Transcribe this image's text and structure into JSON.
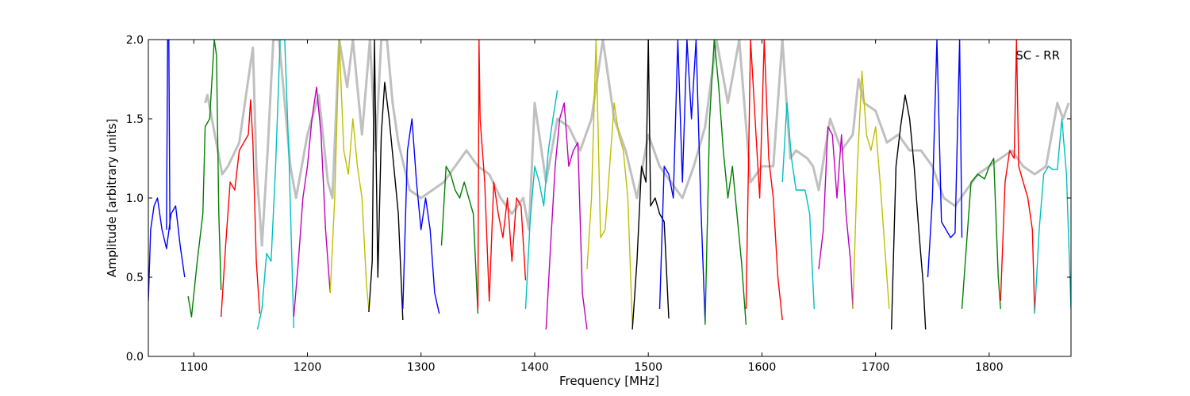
{
  "chart_data": {
    "type": "line",
    "annotation": "SC - RR",
    "xlabel": "Frequency [MHz]",
    "ylabel": "Amplitude [arbitrary units]",
    "xlim": [
      1060,
      1872
    ],
    "ylim": [
      0.0,
      2.0
    ],
    "xticks": [
      1100,
      1200,
      1300,
      1400,
      1500,
      1600,
      1700,
      1800
    ],
    "yticks": [
      0.0,
      0.5,
      1.0,
      1.5,
      2.0
    ],
    "xtick_labels": [
      "1100",
      "1200",
      "1300",
      "1400",
      "1500",
      "1600",
      "1700",
      "1800"
    ],
    "ytick_labels": [
      "0.0",
      "0.5",
      "1.0",
      "1.5",
      "2.0"
    ],
    "grid": false,
    "background_series": {
      "color": "#c0c0c0",
      "x": [
        1110,
        1112,
        1125,
        1130,
        1140,
        1148,
        1152,
        1155,
        1160,
        1165,
        1170,
        1175,
        1180,
        1185,
        1190,
        1200,
        1210,
        1218,
        1222,
        1228,
        1235,
        1240,
        1248,
        1255,
        1260,
        1265,
        1270,
        1275,
        1280,
        1290,
        1300,
        1310,
        1320,
        1330,
        1340,
        1350,
        1360,
        1370,
        1380,
        1390,
        1395,
        1400,
        1410,
        1420,
        1430,
        1440,
        1450,
        1460,
        1470,
        1480,
        1490,
        1495,
        1500,
        1510,
        1520,
        1530,
        1540,
        1550,
        1560,
        1570,
        1580,
        1590,
        1600,
        1610,
        1618,
        1625,
        1630,
        1640,
        1645,
        1650,
        1660,
        1670,
        1680,
        1685,
        1690,
        1700,
        1710,
        1720,
        1730,
        1740,
        1750,
        1760,
        1770,
        1775,
        1780,
        1790,
        1800,
        1810,
        1820,
        1830,
        1840,
        1850,
        1855,
        1860,
        1865,
        1870
      ],
      "y": [
        1.6,
        1.65,
        1.15,
        1.2,
        1.35,
        1.75,
        1.95,
        1.2,
        0.7,
        1.3,
        2.0,
        2.0,
        1.6,
        1.2,
        1.0,
        1.4,
        1.65,
        1.1,
        1.0,
        2.0,
        1.7,
        2.0,
        1.4,
        2.0,
        1.3,
        2.0,
        2.0,
        1.6,
        1.35,
        1.05,
        1.0,
        1.05,
        1.1,
        1.2,
        1.3,
        1.2,
        1.15,
        1.0,
        0.9,
        1.0,
        0.8,
        1.6,
        1.1,
        1.5,
        1.45,
        1.3,
        1.5,
        2.0,
        1.5,
        1.3,
        1.0,
        1.2,
        1.4,
        1.2,
        1.1,
        1.0,
        1.2,
        1.45,
        2.0,
        1.6,
        2.0,
        1.1,
        1.2,
        1.2,
        2.0,
        1.25,
        1.3,
        1.25,
        1.2,
        1.05,
        1.5,
        1.3,
        1.4,
        1.75,
        1.6,
        1.55,
        1.35,
        1.4,
        1.3,
        1.3,
        1.2,
        1.0,
        0.95,
        1.0,
        1.05,
        1.15,
        1.2,
        1.25,
        1.3,
        1.2,
        1.15,
        1.2,
        1.4,
        1.6,
        1.5,
        1.6
      ]
    },
    "series": [
      {
        "color": "#0000ff",
        "x": [
          1060,
          1062,
          1065,
          1068,
          1072,
          1076,
          1080,
          1084,
          1088,
          1092
        ],
        "y": [
          0.35,
          0.8,
          0.95,
          1.0,
          0.8,
          0.68,
          0.9,
          0.95,
          0.7,
          0.5
        ]
      },
      {
        "color": "#0000ff",
        "x": [
          1076,
          1077,
          1078,
          1079
        ],
        "y": [
          0.8,
          2.0,
          2.0,
          0.8
        ]
      },
      {
        "color": "#008000",
        "x": [
          1095,
          1098,
          1103,
          1108,
          1110,
          1114,
          1118,
          1120,
          1122,
          1124
        ],
        "y": [
          0.38,
          0.25,
          0.6,
          0.9,
          1.45,
          1.5,
          2.0,
          1.9,
          0.9,
          0.42
        ]
      },
      {
        "color": "#ff0000",
        "x": [
          1124,
          1128,
          1132,
          1136,
          1140,
          1144,
          1148,
          1150,
          1152,
          1155,
          1158
        ],
        "y": [
          0.25,
          0.7,
          1.1,
          1.05,
          1.3,
          1.35,
          1.4,
          1.62,
          1.35,
          0.6,
          0.27
        ]
      },
      {
        "color": "#00bfbf",
        "x": [
          1156,
          1160,
          1164,
          1168,
          1172,
          1176,
          1180,
          1184,
          1188
        ],
        "y": [
          0.17,
          0.3,
          0.65,
          0.6,
          1.2,
          2.0,
          2.0,
          1.2,
          0.18
        ]
      },
      {
        "color": "#bf00bf",
        "x": [
          1188,
          1192,
          1196,
          1200,
          1204,
          1208,
          1212,
          1216,
          1220
        ],
        "y": [
          0.25,
          0.6,
          1.0,
          1.2,
          1.5,
          1.7,
          1.4,
          0.8,
          0.4
        ]
      },
      {
        "color": "#bfbf00",
        "x": [
          1220,
          1224,
          1228,
          1232,
          1236,
          1240,
          1244,
          1248,
          1252,
          1254
        ],
        "y": [
          0.4,
          1.0,
          2.0,
          1.3,
          1.15,
          1.5,
          1.2,
          1.0,
          0.45,
          0.3
        ]
      },
      {
        "color": "#000000",
        "x": [
          1254,
          1257,
          1259,
          1262,
          1265,
          1268,
          1272,
          1276,
          1280,
          1284
        ],
        "y": [
          0.28,
          0.6,
          2.0,
          0.5,
          1.4,
          1.73,
          1.5,
          1.2,
          0.9,
          0.23
        ]
      },
      {
        "color": "#0000ff",
        "x": [
          1284,
          1288,
          1292,
          1296,
          1300,
          1304,
          1308,
          1312,
          1316
        ],
        "y": [
          0.3,
          1.3,
          1.5,
          1.1,
          0.8,
          1.0,
          0.8,
          0.4,
          0.27
        ]
      },
      {
        "color": "#008000",
        "x": [
          1318,
          1322,
          1326,
          1330,
          1334,
          1338,
          1342,
          1346,
          1350
        ],
        "y": [
          0.7,
          1.2,
          1.15,
          1.05,
          1.0,
          1.1,
          1.0,
          0.9,
          0.27
        ]
      },
      {
        "color": "#ff0000",
        "x": [
          1350,
          1351,
          1352,
          1356,
          1360,
          1364,
          1368,
          1372,
          1376,
          1380,
          1384,
          1388,
          1392
        ],
        "y": [
          0.3,
          2.0,
          1.5,
          1.1,
          0.35,
          1.1,
          0.9,
          0.75,
          1.0,
          0.6,
          1.0,
          0.95,
          0.48
        ]
      },
      {
        "color": "#00bfbf",
        "x": [
          1392,
          1396,
          1400,
          1404,
          1408,
          1412,
          1416,
          1420
        ],
        "y": [
          0.3,
          0.85,
          1.2,
          1.1,
          0.95,
          1.3,
          1.5,
          1.68
        ]
      },
      {
        "color": "#bf00bf",
        "x": [
          1410,
          1414,
          1418,
          1422,
          1426,
          1430,
          1434,
          1438,
          1442,
          1446
        ],
        "y": [
          0.17,
          0.7,
          1.2,
          1.5,
          1.6,
          1.2,
          1.3,
          1.35,
          0.4,
          0.17
        ]
      },
      {
        "color": "#bfbf00",
        "x": [
          1446,
          1450,
          1454,
          1458,
          1462,
          1466,
          1470,
          1474,
          1478,
          1482,
          1486
        ],
        "y": [
          0.55,
          1.0,
          2.0,
          0.75,
          0.8,
          1.2,
          1.6,
          1.4,
          1.3,
          1.0,
          0.2
        ]
      },
      {
        "color": "#000000",
        "x": [
          1486,
          1490,
          1494,
          1498,
          1500,
          1502,
          1506,
          1510,
          1514,
          1518
        ],
        "y": [
          0.17,
          0.6,
          1.2,
          1.1,
          2.0,
          0.95,
          1.0,
          0.9,
          0.85,
          0.24
        ]
      },
      {
        "color": "#0000ff",
        "x": [
          1510,
          1514,
          1518,
          1522,
          1526,
          1530,
          1534,
          1538,
          1542,
          1546,
          1550
        ],
        "y": [
          0.3,
          1.2,
          1.15,
          1.0,
          2.0,
          1.1,
          2.0,
          1.5,
          2.0,
          1.0,
          0.22
        ]
      },
      {
        "color": "#008000",
        "x": [
          1550,
          1554,
          1558,
          1562,
          1566,
          1570,
          1574,
          1578,
          1582,
          1586
        ],
        "y": [
          0.2,
          1.5,
          2.0,
          1.7,
          1.3,
          1.0,
          1.2,
          0.9,
          0.6,
          0.2
        ]
      },
      {
        "color": "#ff0000",
        "x": [
          1586,
          1590,
          1594,
          1598,
          1602,
          1606,
          1610,
          1614,
          1618
        ],
        "y": [
          0.3,
          2.0,
          1.5,
          1.0,
          2.0,
          1.25,
          1.0,
          0.5,
          0.23
        ]
      },
      {
        "color": "#00bfbf",
        "x": [
          1618,
          1622,
          1626,
          1630,
          1634,
          1638,
          1642,
          1646
        ],
        "y": [
          1.1,
          1.6,
          1.25,
          1.05,
          1.05,
          1.05,
          0.9,
          0.3
        ]
      },
      {
        "color": "#bf00bf",
        "x": [
          1650,
          1654,
          1658,
          1662,
          1666,
          1670,
          1674,
          1678,
          1680
        ],
        "y": [
          0.55,
          0.8,
          1.45,
          1.4,
          1.0,
          1.4,
          0.9,
          0.6,
          0.3
        ]
      },
      {
        "color": "#bfbf00",
        "x": [
          1680,
          1684,
          1688,
          1692,
          1696,
          1700,
          1704,
          1708,
          1712
        ],
        "y": [
          0.3,
          1.2,
          1.8,
          1.4,
          1.3,
          1.45,
          1.1,
          0.7,
          0.3
        ]
      },
      {
        "color": "#000000",
        "x": [
          1714,
          1718,
          1722,
          1726,
          1730,
          1734,
          1738,
          1742,
          1744
        ],
        "y": [
          0.17,
          1.2,
          1.45,
          1.65,
          1.5,
          1.2,
          0.8,
          0.45,
          0.17
        ]
      },
      {
        "color": "#0000ff",
        "x": [
          1746,
          1750,
          1754,
          1758,
          1762,
          1766,
          1770,
          1774,
          1776
        ],
        "y": [
          0.5,
          1.0,
          2.0,
          0.85,
          0.8,
          0.75,
          0.78,
          2.0,
          0.75
        ]
      },
      {
        "color": "#008000",
        "x": [
          1776,
          1780,
          1784,
          1790,
          1796,
          1800,
          1804,
          1808,
          1810
        ],
        "y": [
          0.3,
          0.7,
          1.1,
          1.15,
          1.12,
          1.2,
          1.25,
          0.5,
          0.3
        ]
      },
      {
        "color": "#ff0000",
        "x": [
          1810,
          1814,
          1818,
          1822,
          1824,
          1826,
          1830,
          1834,
          1838,
          1840
        ],
        "y": [
          0.35,
          1.1,
          1.3,
          1.25,
          2.0,
          1.2,
          1.1,
          1.0,
          0.8,
          0.27
        ]
      },
      {
        "color": "#00bfbf",
        "x": [
          1840,
          1844,
          1848,
          1852,
          1856,
          1860,
          1864,
          1868,
          1872
        ],
        "y": [
          0.27,
          0.8,
          1.15,
          1.2,
          1.18,
          1.18,
          1.5,
          1.15,
          0.3
        ]
      }
    ]
  }
}
